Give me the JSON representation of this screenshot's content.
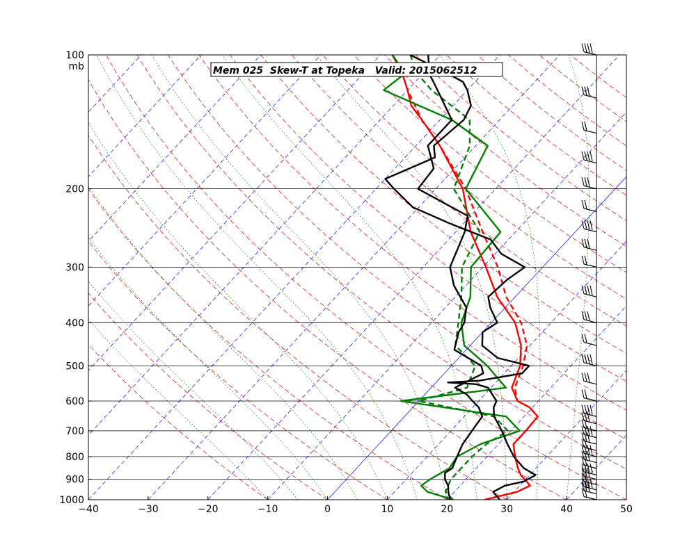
{
  "chart_data": {
    "type": "line",
    "title": "Mem 025  Skew-T at Topeka   Valid: 2015062512",
    "xlabel": "",
    "ylabel": "",
    "pressure_unit": "mb",
    "xlim": [
      -40,
      50
    ],
    "ylim": [
      1000,
      100
    ],
    "y_scale": "log",
    "x_ticks": [
      "−40",
      "−30",
      "−20",
      "−10",
      "0",
      "10",
      "20",
      "30",
      "40",
      "50"
    ],
    "y_ticks": [
      "100",
      "200",
      "300",
      "400",
      "500",
      "600",
      "700",
      "800",
      "900",
      "1000"
    ],
    "isobars": [
      200,
      300,
      400,
      500,
      600,
      700,
      800,
      900
    ],
    "colors": {
      "temperature_mean": "#ff0000",
      "dewpoint_mean": "#008000",
      "member": "#000000",
      "isotherm": "#0000ff",
      "dry_adiabat": "#cc0000",
      "moist_adiabat": "#008000"
    },
    "series": [
      {
        "style": "solid",
        "color": "#ff0000",
        "points": [
          [
            1000,
            26.3
          ],
          [
            960,
            30.5
          ],
          [
            930,
            31.7
          ],
          [
            910,
            30.5
          ],
          [
            880,
            28.5
          ],
          [
            850,
            27.0
          ],
          [
            800,
            24.7
          ],
          [
            750,
            22.5
          ],
          [
            700,
            22.5
          ],
          [
            650,
            22.3
          ],
          [
            620,
            19.5
          ],
          [
            600,
            16.5
          ],
          [
            560,
            13.5
          ],
          [
            500,
            11.5
          ],
          [
            450,
            8.5
          ],
          [
            400,
            4.0
          ],
          [
            350,
            -3.0
          ],
          [
            300,
            -9.5
          ],
          [
            250,
            -17.5
          ],
          [
            200,
            -25.5
          ],
          [
            160,
            -36
          ],
          [
            140,
            -43
          ],
          [
            130,
            -47
          ],
          [
            120,
            -50
          ],
          [
            110,
            -53.5
          ],
          [
            100,
            -58
          ]
        ]
      },
      {
        "style": "dashed",
        "color": "#ff0000",
        "points": [
          [
            1000,
            26.3
          ],
          [
            960,
            30.5
          ],
          [
            930,
            31.7
          ],
          [
            910,
            30.5
          ],
          [
            880,
            28.5
          ],
          [
            850,
            27.0
          ],
          [
            800,
            24.7
          ],
          [
            750,
            22.5
          ],
          [
            700,
            22.5
          ],
          [
            650,
            22.3
          ],
          [
            620,
            19.5
          ],
          [
            600,
            16.5
          ],
          [
            560,
            14.0
          ],
          [
            500,
            12.0
          ],
          [
            450,
            9.5
          ],
          [
            400,
            5.0
          ],
          [
            350,
            -1.5
          ],
          [
            300,
            -7.5
          ],
          [
            250,
            -15.5
          ],
          [
            200,
            -25.0
          ],
          [
            160,
            -36
          ],
          [
            140,
            -43
          ],
          [
            120,
            -50
          ],
          [
            110,
            -53.5
          ],
          [
            100,
            -58
          ]
        ]
      },
      {
        "style": "solid",
        "color": "#008000",
        "points": [
          [
            1000,
            21.0
          ],
          [
            960,
            15.5
          ],
          [
            930,
            13.5
          ],
          [
            900,
            14.0
          ],
          [
            850,
            15.5
          ],
          [
            800,
            15.0
          ],
          [
            750,
            17.0
          ],
          [
            700,
            21.5
          ],
          [
            650,
            17.0
          ],
          [
            600,
            -3.0
          ],
          [
            560,
            12.5
          ],
          [
            500,
            6.0
          ],
          [
            450,
            -1.0
          ],
          [
            400,
            -5.0
          ],
          [
            350,
            -7.5
          ],
          [
            300,
            -12.0
          ],
          [
            250,
            -12.5
          ],
          [
            200,
            -25.0
          ],
          [
            160,
            -28.0
          ],
          [
            140,
            -38.0
          ],
          [
            120,
            -54.0
          ],
          [
            110,
            -53.0
          ],
          [
            100,
            -58.0
          ]
        ]
      },
      {
        "style": "dashed",
        "color": "#008000",
        "points": [
          [
            1000,
            21.0
          ],
          [
            960,
            18.5
          ],
          [
            930,
            18.0
          ],
          [
            900,
            17.5
          ],
          [
            850,
            17.5
          ],
          [
            800,
            17.5
          ],
          [
            750,
            18.0
          ],
          [
            700,
            19.5
          ],
          [
            650,
            15.0
          ],
          [
            600,
            0.0
          ],
          [
            560,
            6.0
          ],
          [
            500,
            4.0
          ],
          [
            450,
            -2.5
          ],
          [
            400,
            -5.5
          ],
          [
            350,
            -9.0
          ],
          [
            300,
            -13.5
          ],
          [
            250,
            -16.0
          ],
          [
            200,
            -27.0
          ],
          [
            160,
            -31.0
          ],
          [
            140,
            -35.0
          ],
          [
            120,
            -46.0
          ],
          [
            110,
            -51.0
          ],
          [
            100,
            -55.0
          ]
        ]
      },
      {
        "style": "solid",
        "color": "#000000",
        "points": [
          [
            1000,
            28.8
          ],
          [
            960,
            26.5
          ],
          [
            930,
            27.5
          ],
          [
            910,
            30.0
          ],
          [
            880,
            31.0
          ],
          [
            850,
            28.0
          ],
          [
            800,
            24.5
          ],
          [
            750,
            21.5
          ],
          [
            700,
            18.5
          ],
          [
            650,
            15.0
          ],
          [
            620,
            13.5
          ],
          [
            600,
            13.0
          ],
          [
            560,
            9.5
          ],
          [
            550,
            7.0
          ],
          [
            545,
            2.0
          ],
          [
            540,
            7.0
          ],
          [
            520,
            13.0
          ],
          [
            500,
            13.0
          ],
          [
            480,
            6.5
          ],
          [
            450,
            2.0
          ],
          [
            420,
            0.0
          ],
          [
            400,
            1.0
          ],
          [
            370,
            -2.5
          ],
          [
            350,
            -4.5
          ],
          [
            320,
            -4.0
          ],
          [
            300,
            -3.0
          ],
          [
            280,
            -9.0
          ],
          [
            260,
            -13.0
          ],
          [
            240,
            -22.0
          ],
          [
            220,
            -31.0
          ],
          [
            200,
            -37.0
          ],
          [
            190,
            -40.0
          ],
          [
            170,
            -35.0
          ],
          [
            160,
            -37.0
          ],
          [
            140,
            -36.0
          ],
          [
            130,
            -37.0
          ],
          [
            120,
            -40.0
          ],
          [
            115,
            -42.0
          ],
          [
            110,
            -46.0
          ],
          [
            100,
            -55.0
          ]
        ]
      },
      {
        "style": "solid",
        "color": "#000000",
        "points": [
          [
            1000,
            20.5
          ],
          [
            960,
            19.0
          ],
          [
            930,
            18.0
          ],
          [
            900,
            16.5
          ],
          [
            870,
            15.5
          ],
          [
            850,
            16.0
          ],
          [
            800,
            15.0
          ],
          [
            750,
            14.0
          ],
          [
            700,
            13.5
          ],
          [
            650,
            13.0
          ],
          [
            620,
            11.0
          ],
          [
            600,
            9.0
          ],
          [
            580,
            7.0
          ],
          [
            560,
            4.0
          ],
          [
            520,
            6.5
          ],
          [
            500,
            5.0
          ],
          [
            460,
            -2.0
          ],
          [
            420,
            -4.0
          ],
          [
            400,
            -4.5
          ],
          [
            370,
            -6.5
          ],
          [
            330,
            -12.0
          ],
          [
            300,
            -15.5
          ],
          [
            250,
            -18.5
          ],
          [
            230,
            -20.5
          ],
          [
            200,
            -33.0
          ],
          [
            180,
            -33.5
          ],
          [
            160,
            -38.0
          ],
          [
            140,
            -38.0
          ],
          [
            120,
            -45.0
          ],
          [
            110,
            -49.0
          ],
          [
            100,
            -52.0
          ]
        ]
      }
    ],
    "wind_barbs": [
      1000,
      970,
      950,
      925,
      900,
      880,
      850,
      825,
      800,
      775,
      750,
      725,
      700,
      675,
      650,
      600,
      550,
      500,
      450,
      400,
      350,
      300,
      275,
      250,
      225,
      200,
      175,
      150,
      125,
      100
    ]
  }
}
